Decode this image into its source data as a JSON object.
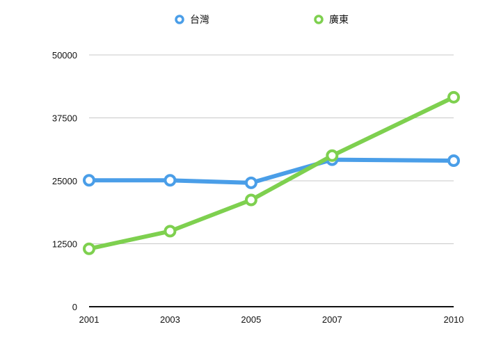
{
  "chart_data": {
    "type": "line",
    "title": "",
    "xlabel": "",
    "ylabel": "",
    "x": [
      "2001",
      "2003",
      "2005",
      "2007",
      "2010"
    ],
    "ylim": [
      0,
      50000
    ],
    "yticks": [
      "0",
      "12500",
      "25000",
      "37500",
      "50000"
    ],
    "grid": true,
    "legend": "top-center",
    "series": [
      {
        "name": "台灣",
        "color": "#4a9ee8",
        "values": [
          25100,
          25100,
          24600,
          29200,
          29000
        ]
      },
      {
        "name": "廣東",
        "color": "#7ed04f",
        "values": [
          11500,
          15000,
          21200,
          30000,
          41600
        ]
      }
    ]
  }
}
